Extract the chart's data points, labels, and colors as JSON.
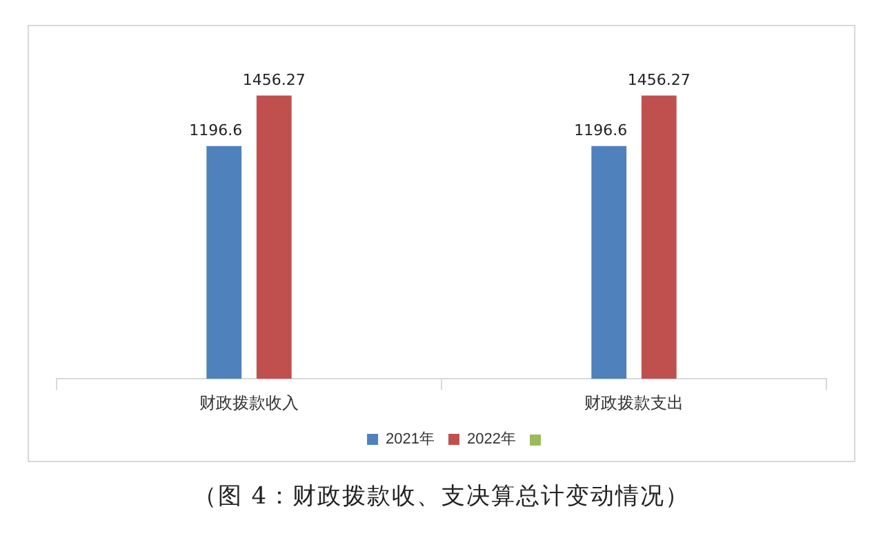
{
  "chart_data": {
    "type": "bar",
    "categories": [
      "财政拨款收入",
      "财政拨款支出"
    ],
    "series": [
      {
        "name": "2021年",
        "color": "#4f81bd",
        "values": [
          1196.6,
          1196.6
        ]
      },
      {
        "name": "2022年",
        "color": "#c0504d",
        "values": [
          1456.27,
          1456.27
        ]
      }
    ],
    "data_labels": true,
    "grid": false,
    "legend": "bottom",
    "annotations": [
      "（图 4：财政拨款收、支决算总计变动情况）"
    ]
  }
}
